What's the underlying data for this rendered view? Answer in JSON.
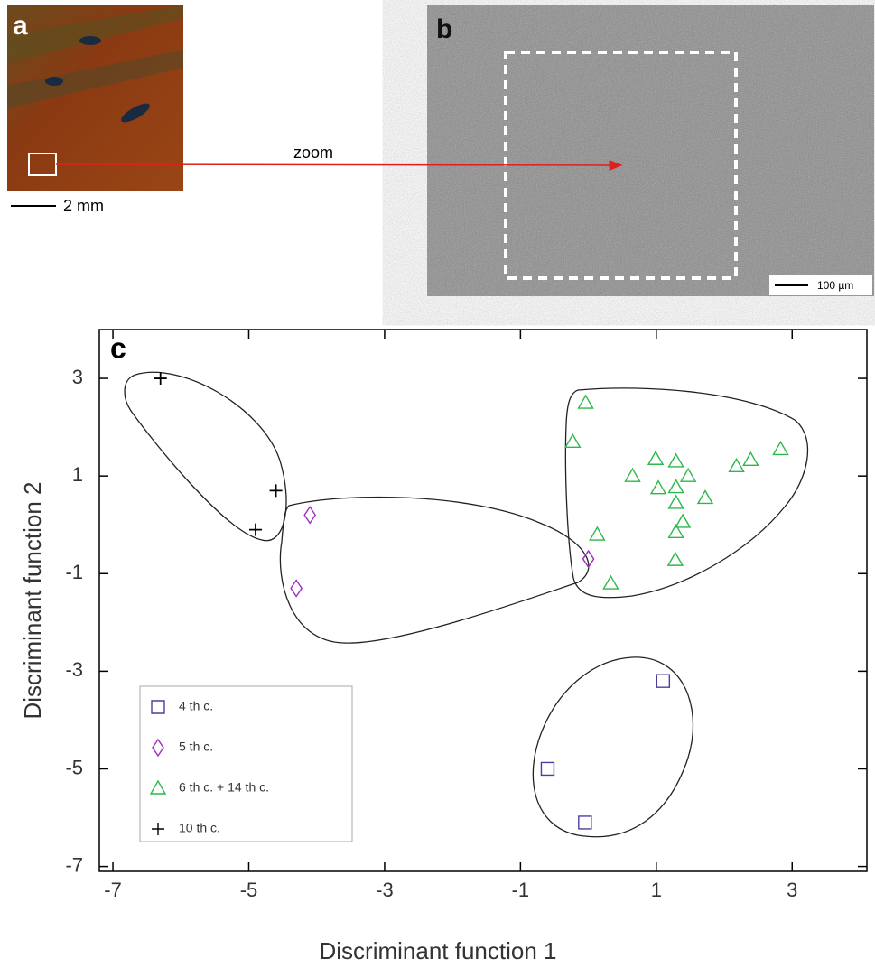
{
  "panels": {
    "a": {
      "label": "a",
      "scale_bar": "2 mm"
    },
    "b": {
      "label": "b",
      "scale_bar": "100 µm"
    },
    "zoom": "zoom"
  },
  "chart_data": {
    "type": "scatter",
    "label": "c",
    "x_label": "Discriminant function 1",
    "y_label": "Discriminant function 2",
    "xlim": [
      -7.2,
      4.1
    ],
    "ylim": [
      -7.1,
      4.0
    ],
    "xticks": [
      -7,
      -5,
      -3,
      -1,
      1,
      3
    ],
    "yticks": [
      -7,
      -5,
      -3,
      -1,
      1,
      3
    ],
    "series": [
      {
        "name": "4 th c.",
        "color": "#4b3f9e",
        "marker": "square",
        "x": [
          1.1,
          -0.6,
          -0.05
        ],
        "y": [
          -3.2,
          -5.0,
          -6.1
        ]
      },
      {
        "name": "5 th c.",
        "color": "#9b30c0",
        "marker": "diamond",
        "x": [
          -4.1,
          -4.3,
          0.0
        ],
        "y": [
          0.2,
          -1.3,
          -0.7
        ]
      },
      {
        "name": "6 th c. + 14 th c.",
        "color": "#2db84a",
        "marker": "triangle",
        "x": [
          -0.04,
          -0.23,
          0.13,
          0.33,
          0.65,
          0.99,
          1.03,
          1.29,
          1.29,
          1.47,
          1.29,
          1.39,
          1.29,
          1.72,
          1.28,
          2.18,
          2.39,
          2.83
        ],
        "y": [
          2.5,
          1.7,
          -0.2,
          -1.2,
          1.0,
          1.35,
          0.75,
          1.3,
          0.77,
          1.0,
          0.45,
          0.06,
          -0.15,
          0.55,
          -0.72,
          1.2,
          1.33,
          1.55
        ]
      },
      {
        "name": "10 th c.",
        "color": "#000000",
        "marker": "plus",
        "x": [
          -6.3,
          -4.6,
          -4.9
        ],
        "y": [
          3.0,
          0.7,
          -0.1
        ]
      }
    ]
  }
}
